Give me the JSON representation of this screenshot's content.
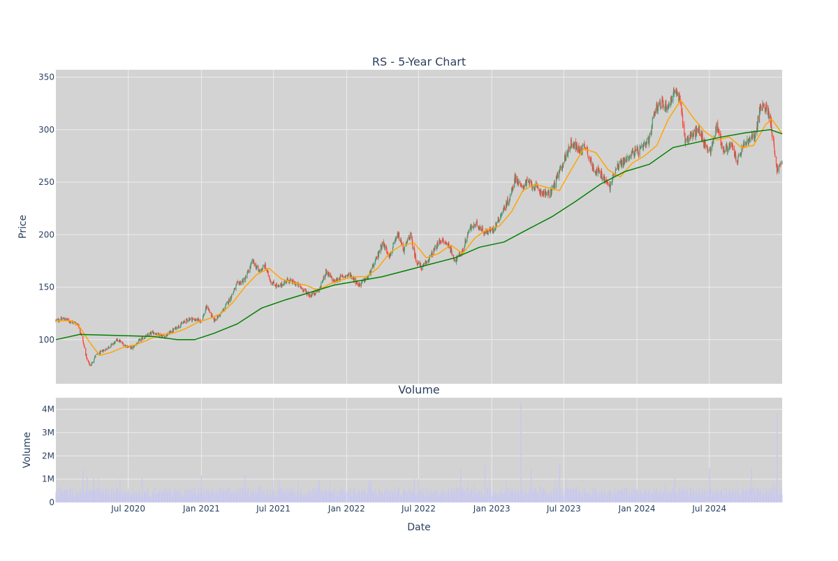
{
  "colors": {
    "background": "#ffffff",
    "plot_bg": "#d3d3d3",
    "grid": "#ececec",
    "up": "#3d9970",
    "down": "#ff4136",
    "ma_fast": "#ffa500",
    "ma_slow": "#008000",
    "volume": "#c8c8f0",
    "text": "#2a3f5f"
  },
  "chart_data": [
    {
      "type": "candlestick",
      "title": "RS - 5-Year Chart",
      "ylabel": "Price",
      "ylim": [
        58,
        357
      ],
      "xlim": [
        "2020-01-01",
        "2024-12-31"
      ],
      "yticks": [
        100,
        150,
        200,
        250,
        300,
        350
      ],
      "xticks": [
        {
          "date": "2020-07-01",
          "label": "Jul 2020"
        },
        {
          "date": "2021-01-01",
          "label": "Jan 2021"
        },
        {
          "date": "2021-07-01",
          "label": "Jul 2021"
        },
        {
          "date": "2022-01-01",
          "label": "Jan 2022"
        },
        {
          "date": "2022-07-01",
          "label": "Jul 2022"
        },
        {
          "date": "2023-01-01",
          "label": "Jan 2023"
        },
        {
          "date": "2023-07-01",
          "label": "Jul 2023"
        },
        {
          "date": "2024-01-01",
          "label": "Jan 2024"
        },
        {
          "date": "2024-07-01",
          "label": "Jul 2024"
        }
      ],
      "grid": true,
      "close_path": [
        [
          "2020-01-01",
          118
        ],
        [
          "2020-01-20",
          120
        ],
        [
          "2020-02-10",
          117
        ],
        [
          "2020-02-25",
          115
        ],
        [
          "2020-03-05",
          105
        ],
        [
          "2020-03-20",
          80
        ],
        [
          "2020-03-28",
          75
        ],
        [
          "2020-04-10",
          85
        ],
        [
          "2020-05-01",
          90
        ],
        [
          "2020-05-20",
          95
        ],
        [
          "2020-06-05",
          100
        ],
        [
          "2020-06-20",
          95
        ],
        [
          "2020-07-10",
          92
        ],
        [
          "2020-08-01",
          100
        ],
        [
          "2020-09-01",
          107
        ],
        [
          "2020-10-01",
          103
        ],
        [
          "2020-11-01",
          112
        ],
        [
          "2020-12-01",
          120
        ],
        [
          "2021-01-01",
          118
        ],
        [
          "2021-01-15",
          132
        ],
        [
          "2021-02-01",
          118
        ],
        [
          "2021-02-20",
          125
        ],
        [
          "2021-03-15",
          140
        ],
        [
          "2021-04-01",
          153
        ],
        [
          "2021-04-20",
          157
        ],
        [
          "2021-05-10",
          175
        ],
        [
          "2021-05-25",
          165
        ],
        [
          "2021-06-10",
          170
        ],
        [
          "2021-06-25",
          155
        ],
        [
          "2021-07-15",
          150
        ],
        [
          "2021-08-05",
          157
        ],
        [
          "2021-09-01",
          152
        ],
        [
          "2021-10-01",
          142
        ],
        [
          "2021-10-25",
          148
        ],
        [
          "2021-11-10",
          165
        ],
        [
          "2021-12-01",
          155
        ],
        [
          "2021-12-20",
          160
        ],
        [
          "2022-01-10",
          162
        ],
        [
          "2022-02-01",
          152
        ],
        [
          "2022-02-25",
          160
        ],
        [
          "2022-03-15",
          175
        ],
        [
          "2022-04-01",
          192
        ],
        [
          "2022-04-20",
          180
        ],
        [
          "2022-05-10",
          200
        ],
        [
          "2022-05-25",
          185
        ],
        [
          "2022-06-10",
          200
        ],
        [
          "2022-06-25",
          175
        ],
        [
          "2022-07-10",
          168
        ],
        [
          "2022-08-01",
          180
        ],
        [
          "2022-08-25",
          195
        ],
        [
          "2022-09-15",
          190
        ],
        [
          "2022-10-01",
          175
        ],
        [
          "2022-10-20",
          185
        ],
        [
          "2022-11-05",
          205
        ],
        [
          "2022-11-25",
          210
        ],
        [
          "2022-12-15",
          202
        ],
        [
          "2023-01-05",
          205
        ],
        [
          "2023-01-25",
          220
        ],
        [
          "2023-02-15",
          235
        ],
        [
          "2023-03-01",
          255
        ],
        [
          "2023-03-15",
          245
        ],
        [
          "2023-04-01",
          250
        ],
        [
          "2023-04-20",
          245
        ],
        [
          "2023-05-10",
          240
        ],
        [
          "2023-05-25",
          238
        ],
        [
          "2023-06-10",
          250
        ],
        [
          "2023-07-01",
          270
        ],
        [
          "2023-07-20",
          288
        ],
        [
          "2023-08-10",
          280
        ],
        [
          "2023-08-25",
          285
        ],
        [
          "2023-09-10",
          265
        ],
        [
          "2023-10-01",
          258
        ],
        [
          "2023-10-25",
          245
        ],
        [
          "2023-11-10",
          265
        ],
        [
          "2023-12-01",
          270
        ],
        [
          "2023-12-20",
          278
        ],
        [
          "2024-01-10",
          280
        ],
        [
          "2024-02-01",
          290
        ],
        [
          "2024-02-15",
          320
        ],
        [
          "2024-03-01",
          325
        ],
        [
          "2024-03-20",
          322
        ],
        [
          "2024-04-05",
          338
        ],
        [
          "2024-04-20",
          325
        ],
        [
          "2024-05-01",
          290
        ],
        [
          "2024-05-20",
          295
        ],
        [
          "2024-06-05",
          300
        ],
        [
          "2024-06-20",
          285
        ],
        [
          "2024-07-05",
          280
        ],
        [
          "2024-07-20",
          305
        ],
        [
          "2024-08-05",
          280
        ],
        [
          "2024-08-25",
          285
        ],
        [
          "2024-09-10",
          270
        ],
        [
          "2024-09-25",
          285
        ],
        [
          "2024-10-10",
          290
        ],
        [
          "2024-10-25",
          295
        ],
        [
          "2024-11-05",
          320
        ],
        [
          "2024-11-20",
          322
        ],
        [
          "2024-12-01",
          312
        ],
        [
          "2024-12-10",
          285
        ],
        [
          "2024-12-18",
          262
        ],
        [
          "2024-12-31",
          268
        ]
      ],
      "series": [
        {
          "type": "line",
          "points": [
            [
              "2020-01-01",
              118
            ],
            [
              "2020-02-10",
              118
            ],
            [
              "2020-03-01",
              112
            ],
            [
              "2020-03-25",
              98
            ],
            [
              "2020-04-20",
              85
            ],
            [
              "2020-05-20",
              88
            ],
            [
              "2020-06-20",
              93
            ],
            [
              "2020-07-20",
              95
            ],
            [
              "2020-08-20",
              100
            ],
            [
              "2020-09-20",
              105
            ],
            [
              "2020-10-20",
              106
            ],
            [
              "2020-11-20",
              110
            ],
            [
              "2020-12-20",
              116
            ],
            [
              "2021-01-20",
              120
            ],
            [
              "2021-02-20",
              125
            ],
            [
              "2021-03-20",
              135
            ],
            [
              "2021-04-20",
              150
            ],
            [
              "2021-05-20",
              162
            ],
            [
              "2021-06-20",
              168
            ],
            [
              "2021-07-20",
              158
            ],
            [
              "2021-08-20",
              154
            ],
            [
              "2021-09-20",
              152
            ],
            [
              "2021-10-20",
              147
            ],
            [
              "2021-11-20",
              153
            ],
            [
              "2021-12-20",
              157
            ],
            [
              "2022-01-20",
              160
            ],
            [
              "2022-02-20",
              160
            ],
            [
              "2022-03-20",
              168
            ],
            [
              "2022-04-20",
              183
            ],
            [
              "2022-05-20",
              190
            ],
            [
              "2022-06-20",
              192
            ],
            [
              "2022-07-20",
              178
            ],
            [
              "2022-08-20",
              182
            ],
            [
              "2022-09-20",
              190
            ],
            [
              "2022-10-20",
              182
            ],
            [
              "2022-11-20",
              197
            ],
            [
              "2022-12-20",
              205
            ],
            [
              "2023-01-20",
              208
            ],
            [
              "2023-02-20",
              222
            ],
            [
              "2023-03-20",
              242
            ],
            [
              "2023-04-20",
              248
            ],
            [
              "2023-05-20",
              245
            ],
            [
              "2023-06-20",
              242
            ],
            [
              "2023-07-20",
              262
            ],
            [
              "2023-08-20",
              282
            ],
            [
              "2023-09-20",
              278
            ],
            [
              "2023-10-20",
              262
            ],
            [
              "2023-11-20",
              255
            ],
            [
              "2023-12-20",
              268
            ],
            [
              "2024-01-20",
              275
            ],
            [
              "2024-02-20",
              285
            ],
            [
              "2024-03-20",
              310
            ],
            [
              "2024-04-20",
              328
            ],
            [
              "2024-05-20",
              312
            ],
            [
              "2024-06-20",
              298
            ],
            [
              "2024-07-20",
              290
            ],
            [
              "2024-08-20",
              293
            ],
            [
              "2024-09-20",
              283
            ],
            [
              "2024-10-20",
              285
            ],
            [
              "2024-11-20",
              305
            ],
            [
              "2024-12-05",
              310
            ],
            [
              "2024-12-31",
              296
            ]
          ]
        },
        {
          "type": "line",
          "points": [
            [
              "2020-01-01",
              100
            ],
            [
              "2020-03-01",
              105
            ],
            [
              "2020-06-01",
              104
            ],
            [
              "2020-09-01",
              103
            ],
            [
              "2020-11-01",
              100
            ],
            [
              "2020-12-15",
              100
            ],
            [
              "2021-02-01",
              106
            ],
            [
              "2021-04-01",
              115
            ],
            [
              "2021-06-01",
              130
            ],
            [
              "2021-08-01",
              138
            ],
            [
              "2021-10-01",
              145
            ],
            [
              "2021-12-01",
              152
            ],
            [
              "2022-02-01",
              156
            ],
            [
              "2022-04-01",
              160
            ],
            [
              "2022-06-01",
              166
            ],
            [
              "2022-08-01",
              172
            ],
            [
              "2022-10-01",
              178
            ],
            [
              "2022-12-01",
              188
            ],
            [
              "2023-02-01",
              193
            ],
            [
              "2023-04-01",
              205
            ],
            [
              "2023-06-01",
              217
            ],
            [
              "2023-08-01",
              232
            ],
            [
              "2023-10-01",
              248
            ],
            [
              "2023-12-01",
              260
            ],
            [
              "2024-02-01",
              267
            ],
            [
              "2024-04-01",
              283
            ],
            [
              "2024-06-01",
              288
            ],
            [
              "2024-08-01",
              293
            ],
            [
              "2024-10-01",
              297
            ],
            [
              "2024-12-01",
              300
            ],
            [
              "2024-12-31",
              296
            ]
          ]
        }
      ]
    },
    {
      "type": "bar",
      "title": "Volume",
      "xlabel": "Date",
      "ylabel": "Volume",
      "ylim": [
        0,
        4500000
      ],
      "yticks": [
        {
          "value": 0,
          "label": "0"
        },
        {
          "value": 1000000,
          "label": "1M"
        },
        {
          "value": 2000000,
          "label": "2M"
        },
        {
          "value": 3000000,
          "label": "3M"
        },
        {
          "value": 4000000,
          "label": "4M"
        }
      ],
      "baseline_range": [
        200000,
        650000
      ],
      "spikes": [
        [
          "2020-03-09",
          1400000
        ],
        [
          "2020-03-20",
          1100000
        ],
        [
          "2020-04-05",
          1050000
        ],
        [
          "2020-06-10",
          1000000
        ],
        [
          "2020-08-05",
          1050000
        ],
        [
          "2021-01-01",
          1150000
        ],
        [
          "2021-04-20",
          1200000
        ],
        [
          "2021-07-15",
          800000
        ],
        [
          "2021-11-20",
          900000
        ],
        [
          "2022-03-01",
          900000
        ],
        [
          "2022-06-20",
          1000000
        ],
        [
          "2022-07-01",
          1000000
        ],
        [
          "2022-10-15",
          1450000
        ],
        [
          "2022-12-15",
          1650000
        ],
        [
          "2023-03-15",
          4300000
        ],
        [
          "2023-04-10",
          1450000
        ],
        [
          "2023-06-20",
          1700000
        ],
        [
          "2024-04-05",
          1050000
        ],
        [
          "2024-07-01",
          1450000
        ],
        [
          "2024-10-15",
          1450000
        ],
        [
          "2024-12-18",
          3800000
        ]
      ]
    }
  ]
}
